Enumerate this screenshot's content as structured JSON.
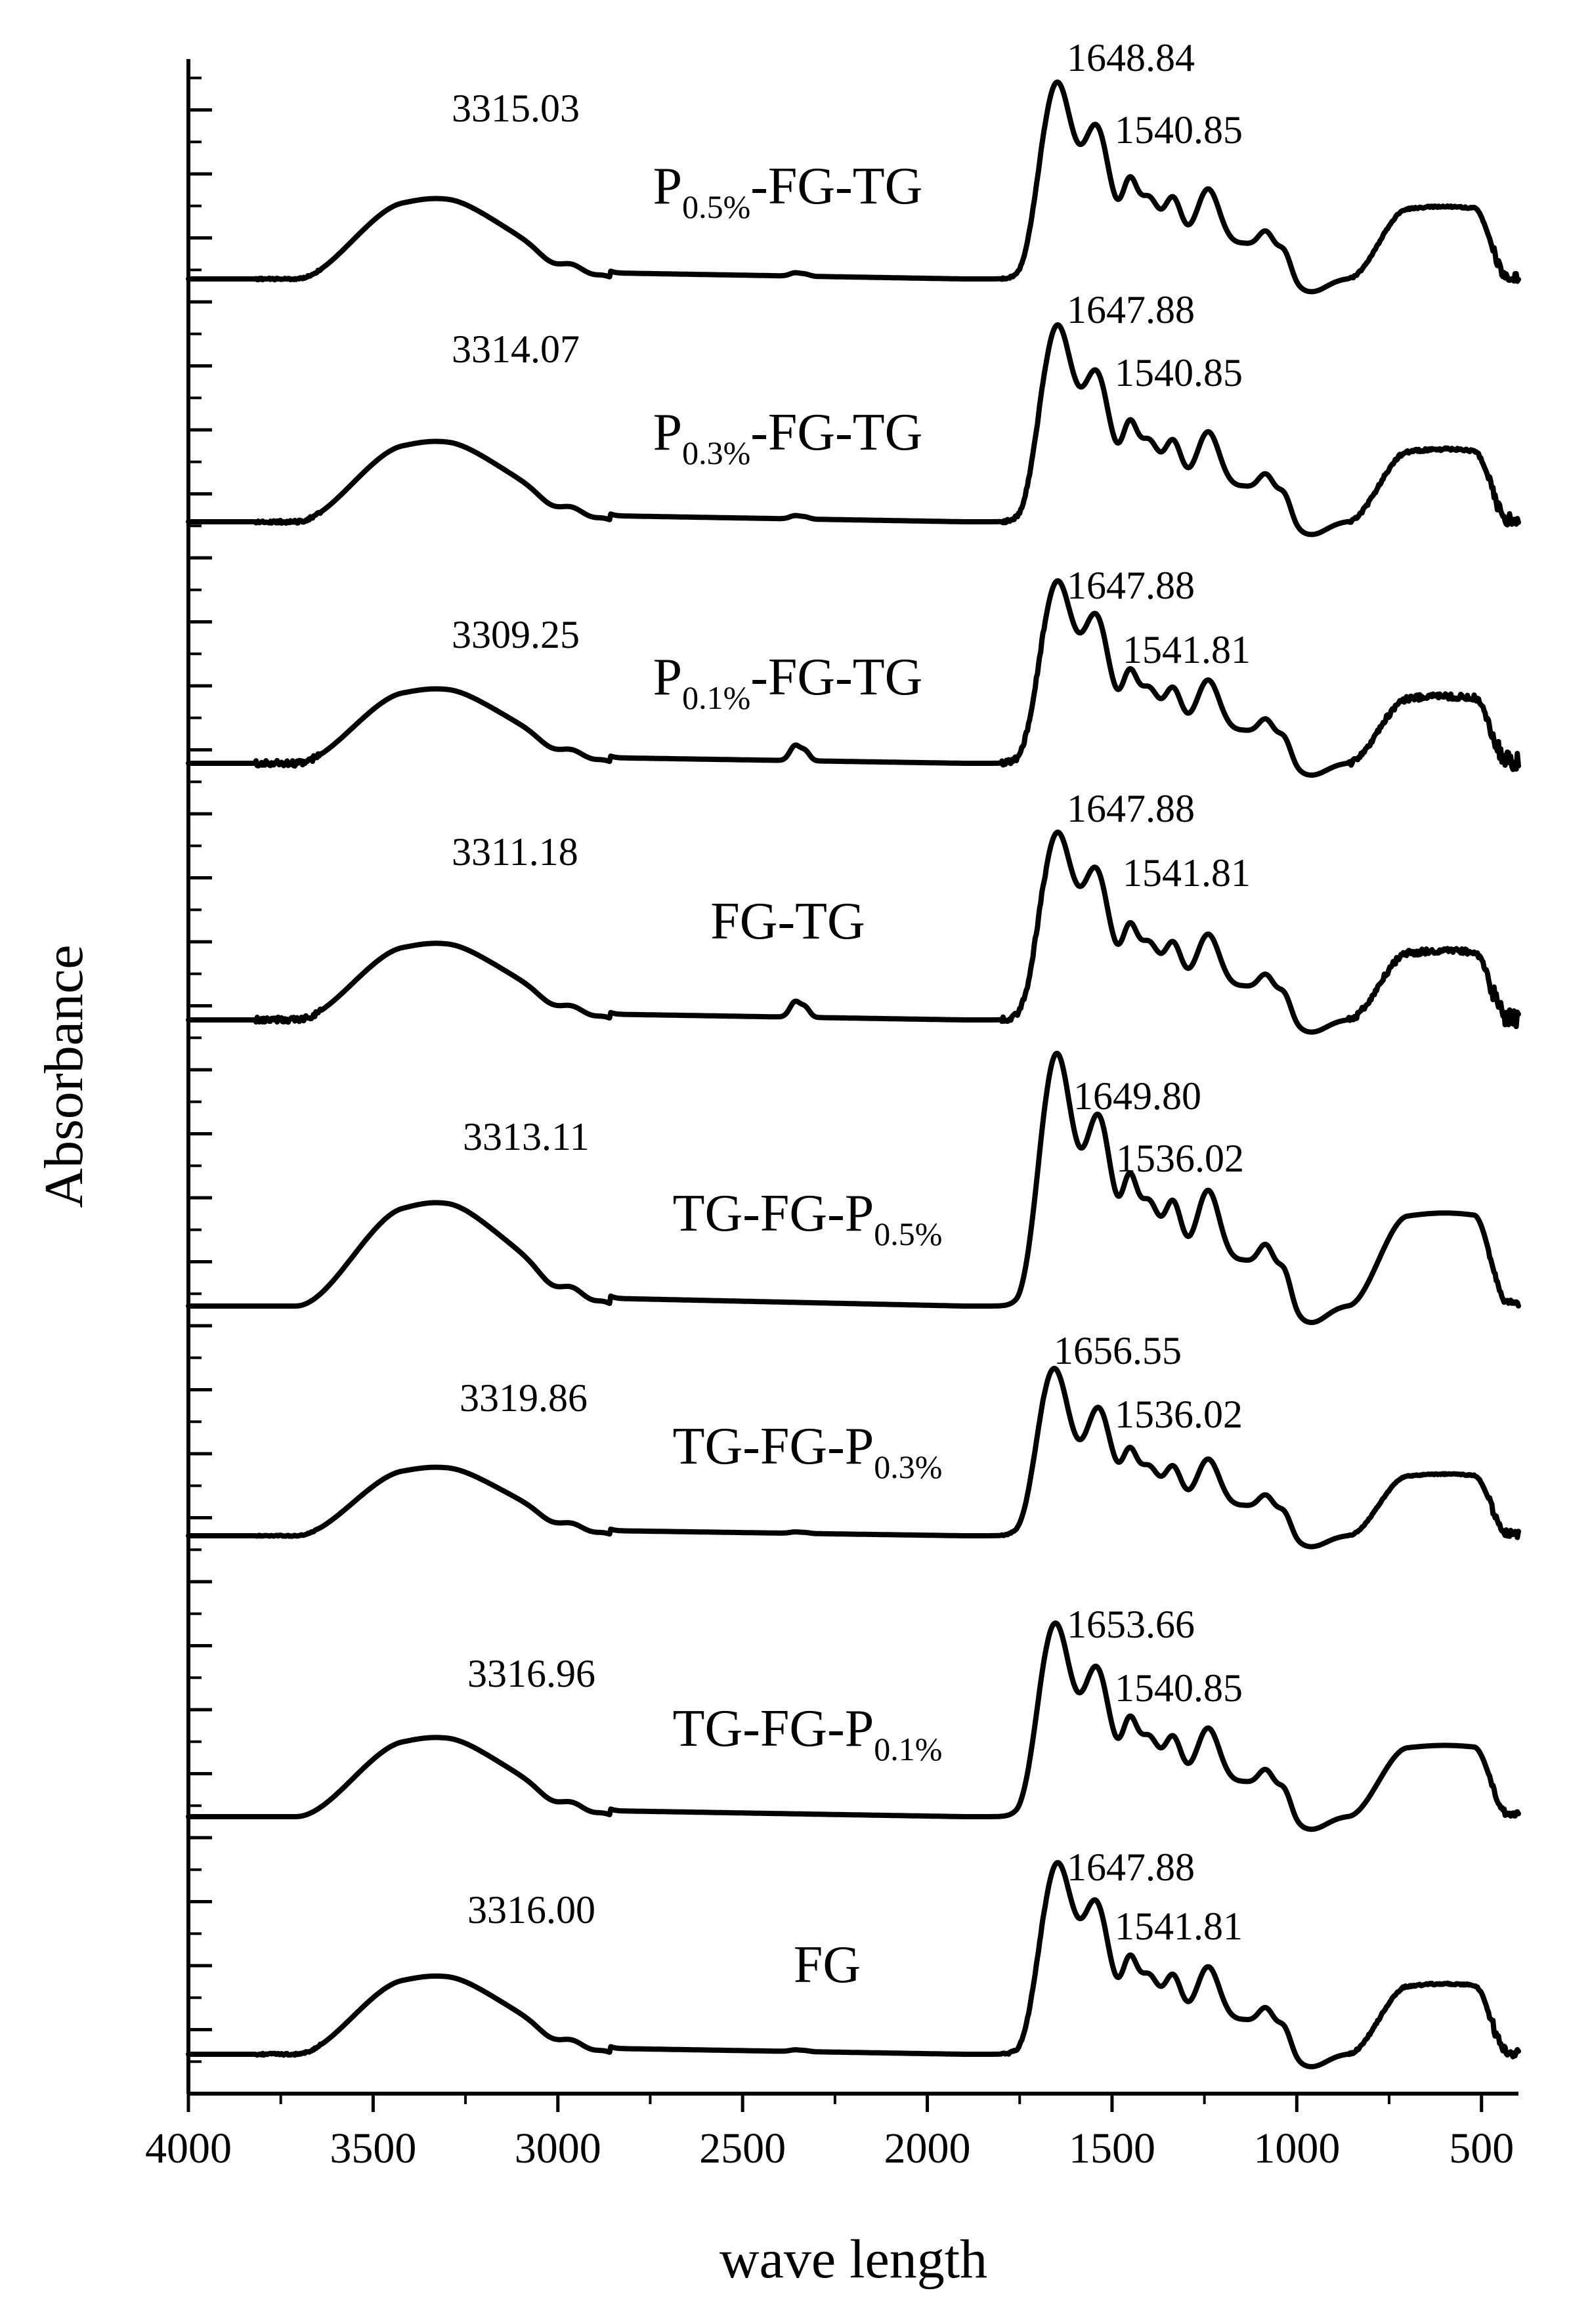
{
  "chart_data": {
    "type": "line",
    "xlabel": "wave length",
    "ylabel": "Absorbance",
    "xlim": [
      4000,
      400
    ],
    "x_reversed": true,
    "x_ticks": [
      4000,
      3500,
      3000,
      2500,
      2000,
      1500,
      1000,
      500
    ],
    "x_tick_labels": [
      "4000",
      "3500",
      "3000",
      "2500",
      "2000",
      "1500",
      "1000",
      "500"
    ],
    "y_tick_labels": "none",
    "stacked_offset": true,
    "grid": false,
    "legend": "none",
    "series": [
      {
        "name": "P-FG-TG",
        "name_main": "P",
        "name_sub": "0.5%",
        "name_tail": "-FG-TG",
        "peaks": [
          {
            "x": 3315.03,
            "label": "3315.03"
          },
          {
            "x": 1648.84,
            "label": "1648.84"
          },
          {
            "x": 1540.85,
            "label": "1540.85"
          }
        ]
      },
      {
        "name": "P-FG-TG",
        "name_main": "P",
        "name_sub": "0.3%",
        "name_tail": "-FG-TG",
        "peaks": [
          {
            "x": 3314.07,
            "label": "3314.07"
          },
          {
            "x": 1647.88,
            "label": "1647.88"
          },
          {
            "x": 1540.85,
            "label": "1540.85"
          }
        ]
      },
      {
        "name": "P-FG-TG",
        "name_main": "P",
        "name_sub": "0.1%",
        "name_tail": "-FG-TG",
        "peaks": [
          {
            "x": 3309.25,
            "label": "3309.25"
          },
          {
            "x": 1647.88,
            "label": "1647.88"
          },
          {
            "x": 1541.81,
            "label": "1541.81"
          }
        ]
      },
      {
        "name": "FG-TG",
        "name_main": "FG-TG",
        "name_sub": "",
        "name_tail": "",
        "peaks": [
          {
            "x": 3311.18,
            "label": "3311.18"
          },
          {
            "x": 1647.88,
            "label": "1647.88"
          },
          {
            "x": 1541.81,
            "label": "1541.81"
          }
        ]
      },
      {
        "name": "TG-FG-P",
        "name_main": "TG-FG-P",
        "name_sub": "0.5%",
        "name_tail": "",
        "peaks": [
          {
            "x": 3313.11,
            "label": "3313.11"
          },
          {
            "x": 1649.8,
            "label": "1649.80"
          },
          {
            "x": 1536.02,
            "label": "1536.02"
          }
        ]
      },
      {
        "name": "TG-FG-P",
        "name_main": "TG-FG-P",
        "name_sub": "0.3%",
        "name_tail": "",
        "peaks": [
          {
            "x": 3319.86,
            "label": "3319.86"
          },
          {
            "x": 1656.55,
            "label": "1656.55"
          },
          {
            "x": 1536.02,
            "label": "1536.02"
          }
        ]
      },
      {
        "name": "TG-FG-P",
        "name_main": "TG-FG-P",
        "name_sub": "0.1%",
        "name_tail": "",
        "peaks": [
          {
            "x": 3316.96,
            "label": "3316.96"
          },
          {
            "x": 1653.66,
            "label": "1653.66"
          },
          {
            "x": 1540.85,
            "label": "1540.85"
          }
        ]
      },
      {
        "name": "FG",
        "name_main": "FG",
        "name_sub": "",
        "name_tail": "",
        "peaks": [
          {
            "x": 3316.0,
            "label": "3316.00"
          },
          {
            "x": 1647.88,
            "label": "1647.88"
          },
          {
            "x": 1541.81,
            "label": "1541.81"
          }
        ]
      }
    ]
  }
}
